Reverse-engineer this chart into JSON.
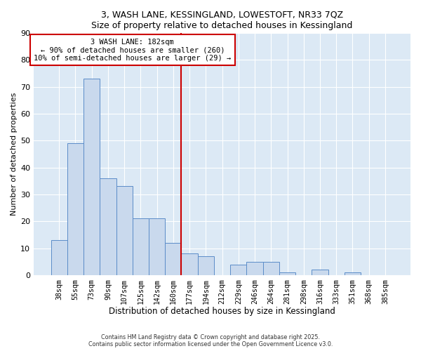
{
  "title1": "3, WASH LANE, KESSINGLAND, LOWESTOFT, NR33 7QZ",
  "title2": "Size of property relative to detached houses in Kessingland",
  "xlabel": "Distribution of detached houses by size in Kessingland",
  "ylabel": "Number of detached properties",
  "bar_labels": [
    "38sqm",
    "55sqm",
    "73sqm",
    "90sqm",
    "107sqm",
    "125sqm",
    "142sqm",
    "160sqm",
    "177sqm",
    "194sqm",
    "212sqm",
    "229sqm",
    "246sqm",
    "264sqm",
    "281sqm",
    "298sqm",
    "316sqm",
    "333sqm",
    "351sqm",
    "368sqm",
    "385sqm"
  ],
  "bar_values": [
    13,
    49,
    73,
    36,
    33,
    21,
    21,
    12,
    8,
    7,
    0,
    4,
    5,
    5,
    1,
    0,
    2,
    0,
    1,
    0,
    0
  ],
  "bar_color": "#c9d9ed",
  "bar_edge_color": "#5b8cc8",
  "vline_color": "#cc0000",
  "annotation_title": "3 WASH LANE: 182sqm",
  "annotation_line1": "← 90% of detached houses are smaller (260)",
  "annotation_line2": "10% of semi-detached houses are larger (29) →",
  "ylim_min": 0,
  "ylim_max": 90,
  "yticks": [
    0,
    10,
    20,
    30,
    40,
    50,
    60,
    70,
    80,
    90
  ],
  "footer1": "Contains HM Land Registry data © Crown copyright and database right 2025.",
  "footer2": "Contains public sector information licensed under the Open Government Licence v3.0.",
  "bg_color": "#ffffff",
  "plot_bg_color": "#dce9f5",
  "grid_color": "#ffffff"
}
